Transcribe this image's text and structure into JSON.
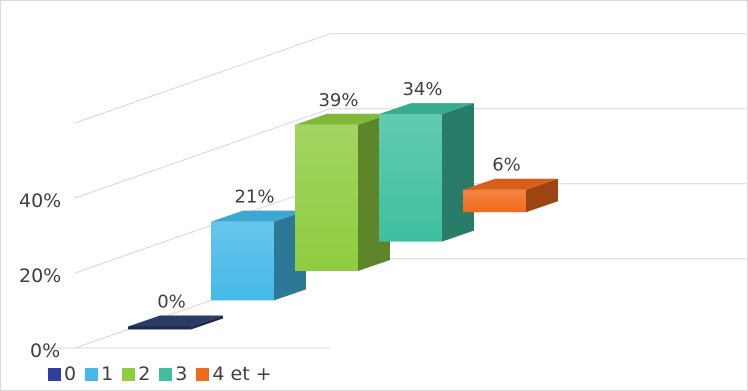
{
  "chart_data": {
    "type": "bar",
    "title": "",
    "xlabel": "",
    "ylabel": "",
    "categories": [
      "0",
      "1",
      "2",
      "3",
      "4 et +"
    ],
    "values": [
      0,
      21,
      39,
      34,
      6
    ],
    "value_labels": [
      "0%",
      "21%",
      "39%",
      "34%",
      "6%"
    ],
    "y_ticks": [
      "0%",
      "20%",
      "40%"
    ],
    "ylim": [
      0,
      60
    ],
    "grid": true,
    "perspective": "3d",
    "legend_position": "bottom-left",
    "colors": [
      "#2f3f9f",
      "#45b9e8",
      "#8fcc3f",
      "#3fbf9f",
      "#f06a1c"
    ]
  }
}
